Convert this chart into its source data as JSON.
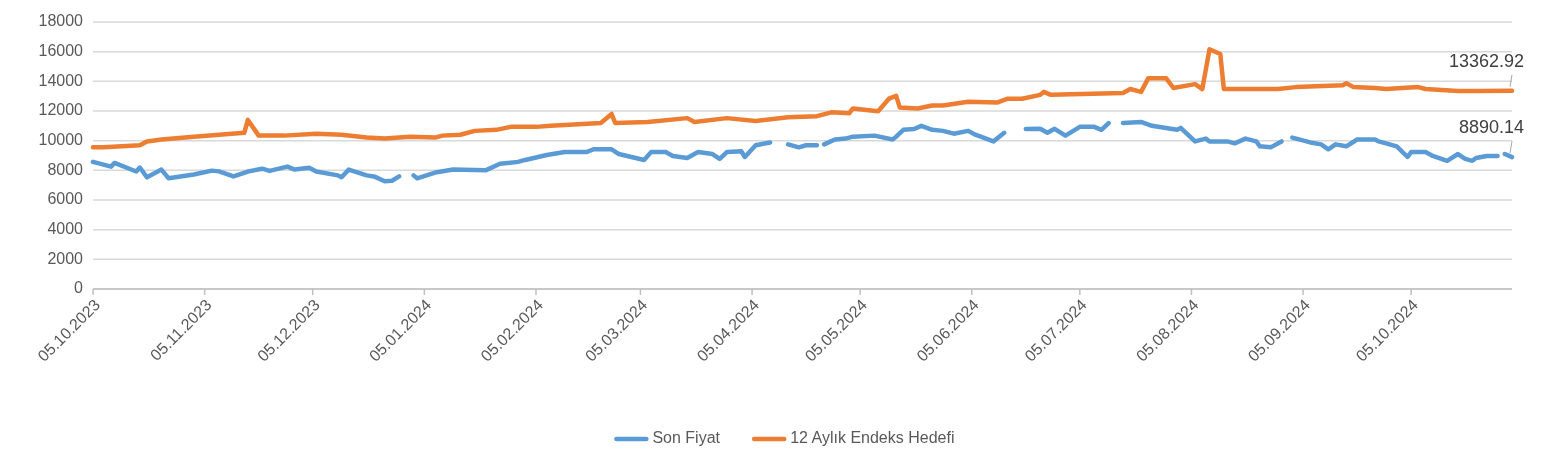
{
  "chart_data": {
    "type": "line",
    "xlim": [
      "2023-10-05",
      "2024-11-02"
    ],
    "xticks": [
      {
        "value": "2023-10-05",
        "label": "05.10.2023"
      },
      {
        "value": "2023-11-05",
        "label": "05.11.2023"
      },
      {
        "value": "2023-12-05",
        "label": "05.12.2023"
      },
      {
        "value": "2024-01-05",
        "label": "05.01.2024"
      },
      {
        "value": "2024-02-05",
        "label": "05.02.2024"
      },
      {
        "value": "2024-03-05",
        "label": "05.03.2024"
      },
      {
        "value": "2024-04-05",
        "label": "05.04.2024"
      },
      {
        "value": "2024-05-05",
        "label": "05.05.2024"
      },
      {
        "value": "2024-06-05",
        "label": "05.06.2024"
      },
      {
        "value": "2024-07-05",
        "label": "05.07.2024"
      },
      {
        "value": "2024-08-05",
        "label": "05.08.2024"
      },
      {
        "value": "2024-09-05",
        "label": "05.09.2024"
      },
      {
        "value": "2024-10-05",
        "label": "05.10.2024"
      }
    ],
    "ylim": [
      0,
      18000
    ],
    "yticks": [
      0,
      2000,
      4000,
      6000,
      8000,
      10000,
      12000,
      14000,
      16000,
      18000
    ],
    "grid": "y",
    "legend": "bottom",
    "marker": "none",
    "line_style": "solid",
    "series": [
      {
        "name": "Son Fiyat",
        "color": "#5b9bd5",
        "x": [
          "2023-10-05",
          "2023-10-10",
          "2023-10-11",
          "2023-10-17",
          "2023-10-18",
          "2023-10-20",
          "2023-10-24",
          "2023-10-26",
          "2023-11-02",
          "2023-11-07",
          "2023-11-09",
          "2023-11-13",
          "2023-11-17",
          "2023-11-21",
          "2023-11-23",
          "2023-11-28",
          "2023-11-30",
          "2023-12-04",
          "2023-12-06",
          "2023-12-12",
          "2023-12-13",
          "2023-12-15",
          "2023-12-20",
          "2023-12-22",
          "2023-12-25",
          "2023-12-27",
          "2023-12-29",
          "2023-12-31",
          "2024-01-02",
          "2024-01-03",
          "2024-01-08",
          "2024-01-13",
          "2024-01-22",
          "2024-01-26",
          "2024-01-31",
          "2024-02-02",
          "2024-02-08",
          "2024-02-13",
          "2024-02-19",
          "2024-02-21",
          "2024-02-26",
          "2024-02-28",
          "2024-03-06",
          "2024-03-08",
          "2024-03-12",
          "2024-03-14",
          "2024-03-18",
          "2024-03-21",
          "2024-03-25",
          "2024-03-27",
          "2024-03-29",
          "2024-04-02",
          "2024-04-03",
          "2024-04-06",
          "2024-04-10",
          "2024-04-13",
          "2024-04-15",
          "2024-04-18",
          "2024-04-20",
          "2024-04-23",
          "2024-04-24",
          "2024-04-25",
          "2024-04-28",
          "2024-05-01",
          "2024-05-03",
          "2024-05-09",
          "2024-05-14",
          "2024-05-15",
          "2024-05-17",
          "2024-05-20",
          "2024-05-22",
          "2024-05-25",
          "2024-05-28",
          "2024-05-31",
          "2024-06-04",
          "2024-06-06",
          "2024-06-11",
          "2024-06-14",
          "2024-06-17",
          "2024-06-20",
          "2024-06-24",
          "2024-06-26",
          "2024-06-28",
          "2024-07-01",
          "2024-07-05",
          "2024-07-09",
          "2024-07-11",
          "2024-07-13",
          "2024-07-15",
          "2024-07-17",
          "2024-07-22",
          "2024-07-25",
          "2024-08-01",
          "2024-08-02",
          "2024-08-06",
          "2024-08-09",
          "2024-08-10",
          "2024-08-15",
          "2024-08-17",
          "2024-08-20",
          "2024-08-23",
          "2024-08-24",
          "2024-08-27",
          "2024-08-30",
          "2024-09-01",
          "2024-09-02",
          "2024-09-07",
          "2024-09-10",
          "2024-09-12",
          "2024-09-14",
          "2024-09-17",
          "2024-09-20",
          "2024-09-25",
          "2024-09-26",
          "2024-10-01",
          "2024-10-04",
          "2024-10-05",
          "2024-10-09",
          "2024-10-11",
          "2024-10-15",
          "2024-10-18",
          "2024-10-20",
          "2024-10-22",
          "2024-10-23",
          "2024-10-26",
          "2024-10-29",
          "2024-10-30",
          "2024-10-31",
          "2024-11-02"
        ],
        "values": [
          8570,
          8250,
          8500,
          7920,
          8190,
          7530,
          8050,
          7460,
          7720,
          7980,
          7930,
          7590,
          7920,
          8110,
          7960,
          8250,
          8050,
          8180,
          7920,
          7660,
          7530,
          8050,
          7660,
          7590,
          7260,
          7300,
          7590,
          null,
          7660,
          7460,
          7850,
          8050,
          8000,
          8440,
          8570,
          8700,
          9030,
          9230,
          9230,
          9420,
          9420,
          9100,
          8700,
          9230,
          9230,
          8970,
          8830,
          9230,
          9100,
          8770,
          9230,
          9290,
          8900,
          9690,
          9880,
          null,
          9750,
          9550,
          9690,
          9690,
          null,
          9750,
          10080,
          10140,
          10270,
          10340,
          10080,
          10270,
          10730,
          10790,
          11000,
          10730,
          10660,
          10470,
          10660,
          10400,
          9950,
          10530,
          null,
          10790,
          10800,
          10530,
          10800,
          10340,
          10930,
          10930,
          10730,
          11190,
          null,
          11190,
          11260,
          11000,
          10730,
          10860,
          9950,
          10140,
          9950,
          9950,
          9820,
          10140,
          9950,
          9620,
          9550,
          9950,
          null,
          10210,
          9880,
          9750,
          9420,
          9750,
          9620,
          10080,
          10080,
          9950,
          9620,
          8900,
          9230,
          9230,
          8970,
          8640,
          9100,
          8770,
          8640,
          8830,
          8970,
          8970,
          null,
          9100,
          8890.14
        ]
      },
      {
        "name": "12 Aylık Endeks Hedefi",
        "color": "#ed7d31",
        "x": [
          "2023-10-05",
          "2023-10-08",
          "2023-10-18",
          "2023-10-20",
          "2023-10-24",
          "2023-11-02",
          "2023-11-09",
          "2023-11-16",
          "2023-11-17",
          "2023-11-20",
          "2023-11-27",
          "2023-12-06",
          "2023-12-13",
          "2023-12-20",
          "2023-12-25",
          "2024-01-01",
          "2024-01-08",
          "2024-01-10",
          "2024-01-15",
          "2024-01-19",
          "2024-01-25",
          "2024-01-29",
          "2024-02-05",
          "2024-02-09",
          "2024-02-13",
          "2024-02-23",
          "2024-02-26",
          "2024-02-27",
          "2024-03-07",
          "2024-03-18",
          "2024-03-20",
          "2024-03-29",
          "2024-04-06",
          "2024-04-15",
          "2024-04-23",
          "2024-04-27",
          "2024-05-02",
          "2024-05-03",
          "2024-05-10",
          "2024-05-13",
          "2024-05-15",
          "2024-05-16",
          "2024-05-21",
          "2024-05-25",
          "2024-05-28",
          "2024-06-04",
          "2024-06-12",
          "2024-06-15",
          "2024-06-19",
          "2024-06-24",
          "2024-06-25",
          "2024-06-27",
          "2024-07-17",
          "2024-07-19",
          "2024-07-22",
          "2024-07-24",
          "2024-07-29",
          "2024-07-31",
          "2024-08-06",
          "2024-08-08",
          "2024-08-10",
          "2024-08-13",
          "2024-08-14",
          "2024-08-29",
          "2024-09-03",
          "2024-09-16",
          "2024-09-17",
          "2024-09-19",
          "2024-09-25",
          "2024-09-28",
          "2024-10-07",
          "2024-10-09",
          "2024-10-18",
          "2024-10-23",
          "2024-11-02"
        ],
        "values": [
          9550,
          9550,
          9690,
          9950,
          10080,
          10270,
          10400,
          10530,
          11400,
          10340,
          10340,
          10470,
          10400,
          10210,
          10140,
          10270,
          10210,
          10340,
          10400,
          10660,
          10730,
          10930,
          10930,
          11000,
          11060,
          11190,
          11800,
          11190,
          11260,
          11520,
          11260,
          11520,
          11320,
          11580,
          11650,
          11910,
          11850,
          12170,
          11980,
          12830,
          13020,
          12240,
          12170,
          12370,
          12370,
          12630,
          12570,
          12830,
          12830,
          13090,
          13290,
          13090,
          13220,
          13480,
          13290,
          14200,
          14200,
          13550,
          13810,
          13480,
          16160,
          15840,
          13480,
          13480,
          13610,
          13740,
          13870,
          13610,
          13550,
          13480,
          13610,
          13480,
          13350,
          13350,
          13362.92
        ]
      }
    ],
    "annotations": [
      {
        "text": "13362.92",
        "x": "2024-11-02",
        "y": 13362.92
      },
      {
        "text": "8890.14",
        "x": "2024-11-02",
        "y": 8890.14
      }
    ]
  }
}
